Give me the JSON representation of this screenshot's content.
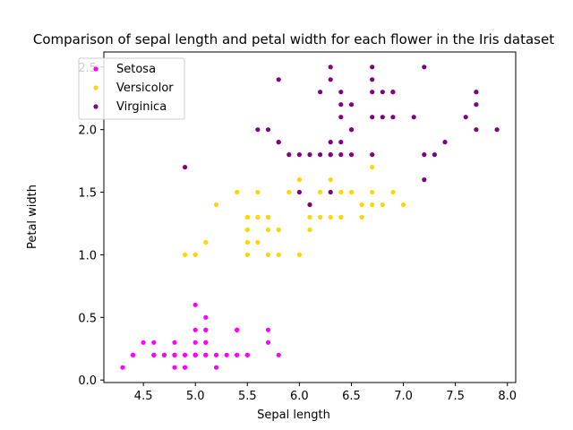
{
  "chart_data": {
    "type": "scatter",
    "title": "Comparison of sepal length and petal width for each flower in the Iris dataset",
    "xlabel": "Sepal length",
    "ylabel": "Petal width",
    "xlim": [
      4.12,
      8.08
    ],
    "ylim": [
      -0.02,
      2.62
    ],
    "xticks": [
      "4.5",
      "5.0",
      "5.5",
      "6.0",
      "6.5",
      "7.0",
      "7.5",
      "8.0"
    ],
    "yticks": [
      "0.0",
      "0.5",
      "1.0",
      "1.5",
      "2.0",
      "2.5"
    ],
    "grid": false,
    "legend_position": "top-left",
    "series": [
      {
        "name": "Setosa",
        "color": "#ff00ff",
        "points": [
          [
            5.1,
            0.2
          ],
          [
            4.9,
            0.2
          ],
          [
            4.7,
            0.2
          ],
          [
            4.6,
            0.2
          ],
          [
            5.0,
            0.2
          ],
          [
            5.4,
            0.4
          ],
          [
            4.6,
            0.3
          ],
          [
            5.0,
            0.2
          ],
          [
            4.4,
            0.2
          ],
          [
            4.9,
            0.1
          ],
          [
            5.4,
            0.2
          ],
          [
            4.8,
            0.2
          ],
          [
            4.8,
            0.1
          ],
          [
            4.3,
            0.1
          ],
          [
            5.8,
            0.2
          ],
          [
            5.7,
            0.4
          ],
          [
            5.4,
            0.4
          ],
          [
            5.1,
            0.3
          ],
          [
            5.7,
            0.3
          ],
          [
            5.1,
            0.3
          ],
          [
            5.4,
            0.2
          ],
          [
            5.1,
            0.4
          ],
          [
            4.6,
            0.2
          ],
          [
            5.1,
            0.5
          ],
          [
            4.8,
            0.2
          ],
          [
            5.0,
            0.2
          ],
          [
            5.0,
            0.4
          ],
          [
            5.2,
            0.2
          ],
          [
            5.2,
            0.2
          ],
          [
            4.7,
            0.2
          ],
          [
            4.8,
            0.2
          ],
          [
            5.4,
            0.4
          ],
          [
            5.2,
            0.1
          ],
          [
            5.5,
            0.2
          ],
          [
            4.9,
            0.2
          ],
          [
            5.0,
            0.2
          ],
          [
            5.5,
            0.2
          ],
          [
            4.9,
            0.1
          ],
          [
            4.4,
            0.2
          ],
          [
            5.1,
            0.2
          ],
          [
            5.0,
            0.3
          ],
          [
            4.5,
            0.3
          ],
          [
            4.4,
            0.2
          ],
          [
            5.0,
            0.6
          ],
          [
            5.1,
            0.4
          ],
          [
            4.8,
            0.3
          ],
          [
            5.1,
            0.2
          ],
          [
            4.6,
            0.2
          ],
          [
            5.3,
            0.2
          ],
          [
            5.0,
            0.2
          ]
        ]
      },
      {
        "name": "Versicolor",
        "color": "#ffd700",
        "points": [
          [
            7.0,
            1.4
          ],
          [
            6.4,
            1.5
          ],
          [
            6.9,
            1.5
          ],
          [
            5.5,
            1.3
          ],
          [
            6.5,
            1.5
          ],
          [
            5.7,
            1.3
          ],
          [
            6.3,
            1.6
          ],
          [
            4.9,
            1.0
          ],
          [
            6.6,
            1.3
          ],
          [
            5.2,
            1.4
          ],
          [
            5.0,
            1.0
          ],
          [
            5.9,
            1.5
          ],
          [
            6.0,
            1.0
          ],
          [
            6.1,
            1.4
          ],
          [
            5.6,
            1.3
          ],
          [
            6.7,
            1.4
          ],
          [
            5.6,
            1.5
          ],
          [
            5.8,
            1.0
          ],
          [
            6.2,
            1.5
          ],
          [
            5.6,
            1.1
          ],
          [
            5.9,
            1.8
          ],
          [
            6.1,
            1.3
          ],
          [
            6.3,
            1.5
          ],
          [
            6.1,
            1.2
          ],
          [
            6.4,
            1.3
          ],
          [
            6.6,
            1.4
          ],
          [
            6.8,
            1.4
          ],
          [
            6.7,
            1.7
          ],
          [
            6.0,
            1.5
          ],
          [
            5.7,
            1.0
          ],
          [
            5.5,
            1.1
          ],
          [
            5.5,
            1.0
          ],
          [
            5.8,
            1.2
          ],
          [
            6.0,
            1.6
          ],
          [
            5.4,
            1.5
          ],
          [
            6.0,
            1.6
          ],
          [
            6.7,
            1.5
          ],
          [
            6.3,
            1.3
          ],
          [
            5.6,
            1.3
          ],
          [
            5.5,
            1.3
          ],
          [
            5.5,
            1.2
          ],
          [
            6.1,
            1.4
          ],
          [
            5.8,
            1.2
          ],
          [
            5.0,
            1.0
          ],
          [
            5.6,
            1.3
          ],
          [
            5.7,
            1.2
          ],
          [
            5.7,
            1.3
          ],
          [
            6.2,
            1.3
          ],
          [
            5.1,
            1.1
          ],
          [
            5.7,
            1.3
          ]
        ]
      },
      {
        "name": "Virginica",
        "color": "#800080",
        "points": [
          [
            6.3,
            2.5
          ],
          [
            5.8,
            1.9
          ],
          [
            7.1,
            2.1
          ],
          [
            6.3,
            1.8
          ],
          [
            6.5,
            2.2
          ],
          [
            7.6,
            2.1
          ],
          [
            4.9,
            1.7
          ],
          [
            7.3,
            1.8
          ],
          [
            6.7,
            1.8
          ],
          [
            7.2,
            2.5
          ],
          [
            6.5,
            2.0
          ],
          [
            6.4,
            1.9
          ],
          [
            6.8,
            2.1
          ],
          [
            5.7,
            2.0
          ],
          [
            5.8,
            2.4
          ],
          [
            6.4,
            2.3
          ],
          [
            6.5,
            1.8
          ],
          [
            7.7,
            2.2
          ],
          [
            7.7,
            2.3
          ],
          [
            6.0,
            1.5
          ],
          [
            6.9,
            2.3
          ],
          [
            5.6,
            2.0
          ],
          [
            7.7,
            2.0
          ],
          [
            6.3,
            1.8
          ],
          [
            6.7,
            2.1
          ],
          [
            7.2,
            1.8
          ],
          [
            6.2,
            1.8
          ],
          [
            6.1,
            1.8
          ],
          [
            6.4,
            2.1
          ],
          [
            7.2,
            1.6
          ],
          [
            7.4,
            1.9
          ],
          [
            7.9,
            2.0
          ],
          [
            6.4,
            2.2
          ],
          [
            6.3,
            1.5
          ],
          [
            6.1,
            1.4
          ],
          [
            7.7,
            2.3
          ],
          [
            6.3,
            2.4
          ],
          [
            6.4,
            1.8
          ],
          [
            6.0,
            1.8
          ],
          [
            6.9,
            2.1
          ],
          [
            6.7,
            2.4
          ],
          [
            6.9,
            2.3
          ],
          [
            5.8,
            1.9
          ],
          [
            6.8,
            2.3
          ],
          [
            6.7,
            2.5
          ],
          [
            6.7,
            2.3
          ],
          [
            6.3,
            1.9
          ],
          [
            6.5,
            2.0
          ],
          [
            6.2,
            2.3
          ],
          [
            5.9,
            1.8
          ]
        ]
      }
    ]
  }
}
